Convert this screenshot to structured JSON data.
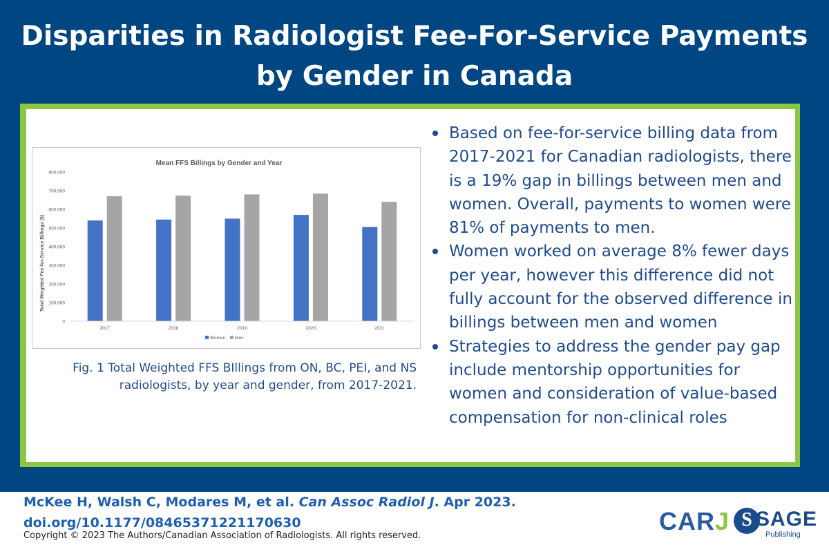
{
  "header": {
    "title_line1": "Disparities in Radiologist Fee-For-Service Payments",
    "title_line2": "by Gender in Canada"
  },
  "chart_data": {
    "type": "bar",
    "title": "Mean FFS Billings by Gender and Year",
    "ylabel": "Total Weighted Fee-for-Service Billings ($)",
    "xlabel": "",
    "ylim": [
      0,
      800000
    ],
    "yticks": [
      "0",
      "100,000",
      "200,000",
      "300,000",
      "400,000",
      "500,000",
      "600,000",
      "700,000",
      "800,000"
    ],
    "grid": false,
    "legend": "bottom-center",
    "categories": [
      "2017",
      "2018",
      "2019",
      "2020",
      "2021"
    ],
    "series": [
      {
        "name": "Women",
        "color": "#4472c4",
        "values": [
          540000,
          545000,
          550000,
          570000,
          505000
        ]
      },
      {
        "name": "Men",
        "color": "#a5a5a5",
        "values": [
          670000,
          673000,
          680000,
          684000,
          640000
        ]
      }
    ]
  },
  "caption": "Fig. 1 Total Weighted FFS BIllings from ON, BC, PEI, and NS radiologists, by year and gender, from 2017-2021.",
  "bullets": [
    "Based on fee-for-service billing data from 2017-2021 for Canadian radiologists, there is a 19% gap in billings between men and women. Overall, payments to women were 81% of payments to men.",
    "Women worked on average 8% fewer days per year, however this difference did not fully account for the observed difference in billings between men and women",
    "Strategies to address the gender pay gap include mentorship opportunities for women and consideration of value-based compensation for non-clinical roles"
  ],
  "citation": {
    "authors": "McKee H, Walsh C, Modares M, et al.",
    "journal": "Can Assoc Radiol J",
    "date": ". Apr 2023.",
    "doi": "doi.org/10.1177/08465371221170630"
  },
  "copyright": "Copyright © 2023 The Authors/Canadian Association of Radiologists. All rights reserved.",
  "logos": {
    "carj_main": "CAR",
    "carj_j": "J",
    "sage_mark": "S",
    "sage_word": "SAGE",
    "sage_sub": "Publishing"
  },
  "colors": {
    "banner": "#004682",
    "frame": "#8dc641",
    "text_blue": "#1f4b8c"
  }
}
